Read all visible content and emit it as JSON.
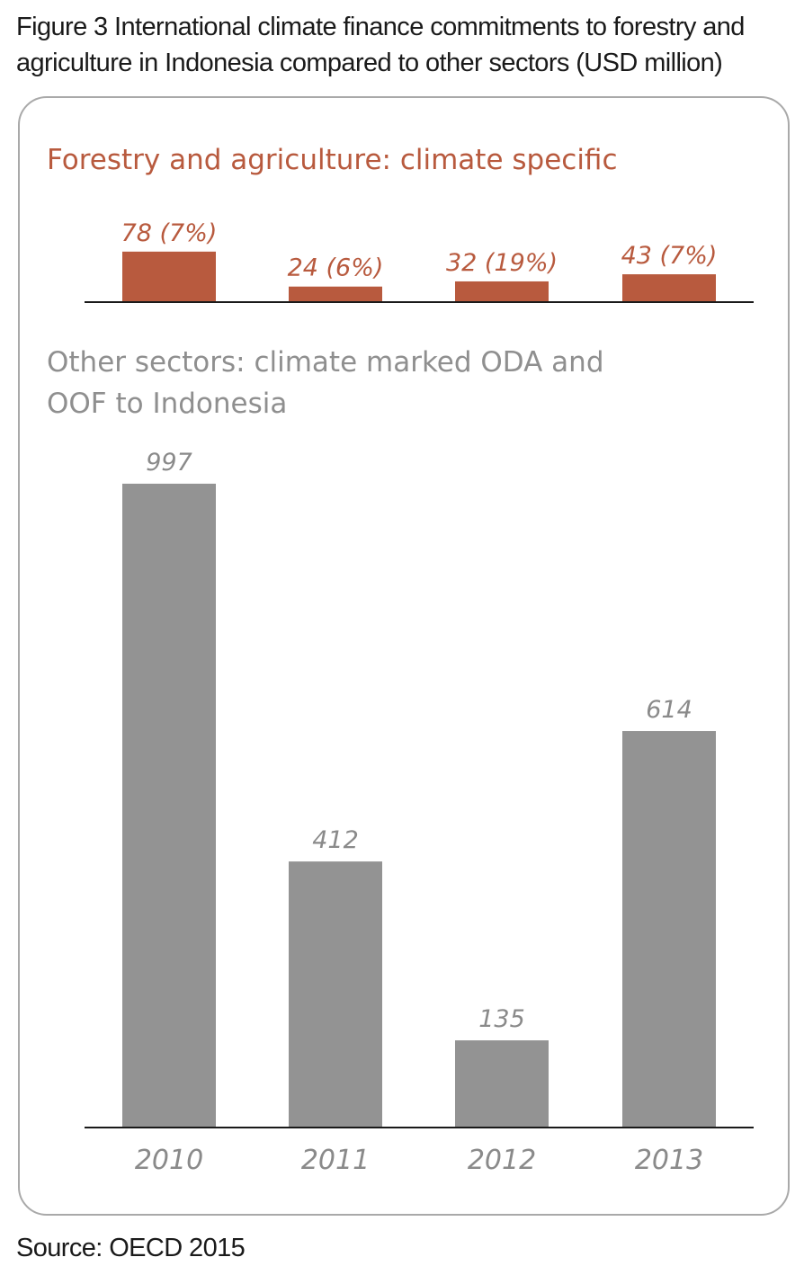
{
  "figure": {
    "title": "Figure 3 International climate finance commitments to forestry and agriculture in Indonesia compared to other sectors (USD million)",
    "source": "Source: OECD 2015"
  },
  "colors": {
    "forestry": "#b85a3e",
    "other": "#939393",
    "frame": "#a9a9a9",
    "axis": "#1a1a1a"
  },
  "chart_data": [
    {
      "type": "bar",
      "title": "Forestry and agriculture: climate specific",
      "categories": [
        "2010",
        "2011",
        "2012",
        "2013"
      ],
      "values": [
        78,
        24,
        32,
        43
      ],
      "labels": [
        "78 (7%)",
        "24 (6%)",
        "32 (19%)",
        "43 (7%)"
      ],
      "color": "#b85a3e",
      "grid": false
    },
    {
      "type": "bar",
      "title": "Other sectors: climate marked ODA and OOF to Indonesia",
      "categories": [
        "2010",
        "2011",
        "2012",
        "2013"
      ],
      "values": [
        997,
        412,
        135,
        614
      ],
      "labels": [
        "997",
        "412",
        "135",
        "614"
      ],
      "color": "#939393",
      "grid": false
    }
  ]
}
